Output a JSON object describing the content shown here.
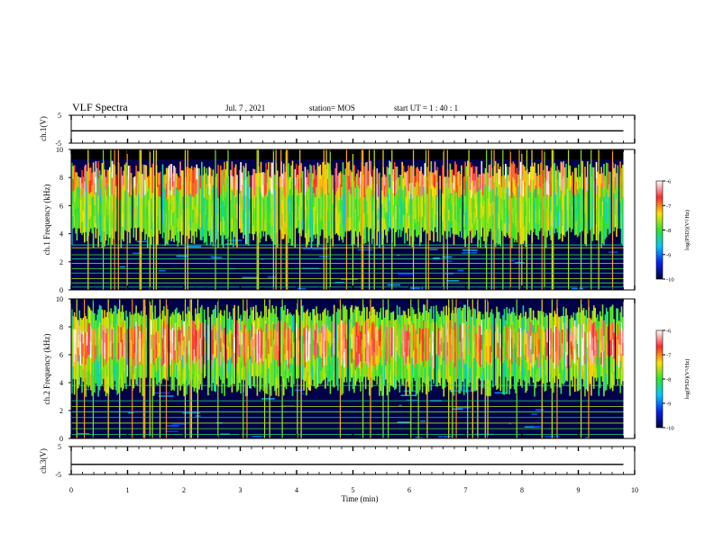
{
  "header": {
    "title": "VLF Spectra",
    "date": "Jul. 7 , 2021",
    "station": "station= MOS",
    "start": "start UT = 1 : 40 : 1"
  },
  "colorbar": {
    "label": "log(PSD)(V²/Hz)",
    "ticks": [
      -6,
      -7,
      -8,
      -9,
      -10
    ],
    "colors": [
      "#ffffff",
      "#ff2a2a",
      "#ffe100",
      "#2fe52f",
      "#00c8ff",
      "#0020ff",
      "#000033"
    ]
  },
  "chart_data": [
    {
      "type": "line",
      "panel": "ch.1 waveform",
      "ylabel": "ch.1(V)",
      "ylim": [
        -5,
        5
      ],
      "yticks": [
        5,
        -5
      ],
      "xlim": [
        0,
        10
      ],
      "series": [
        {
          "x": [
            0,
            9.8
          ],
          "y": [
            -0.6,
            -0.6
          ]
        }
      ]
    },
    {
      "type": "heatmap",
      "panel": "ch.1 spectrogram",
      "ylabel": "ch.1 Frequency (kHz)",
      "ylim": [
        0,
        10
      ],
      "yticks": [
        0,
        2,
        4,
        6,
        8,
        10
      ],
      "xlim": [
        0,
        10
      ],
      "color_range": [
        -10,
        -6
      ],
      "emission_band_khz": [
        3.5,
        9.2
      ],
      "peak_band_khz": [
        7,
        9
      ],
      "black_band_above_khz": 9.3,
      "data_end_min": 9.8,
      "line_frequencies_khz": [
        0.2,
        0.5,
        0.8,
        1.2,
        1.5,
        1.9,
        2.2,
        2.5,
        3.0,
        3.2
      ]
    },
    {
      "type": "heatmap",
      "panel": "ch.2 spectrogram",
      "ylabel": "ch.2 Frequency (kHz)",
      "ylim": [
        0,
        10
      ],
      "yticks": [
        0,
        2,
        4,
        6,
        8,
        10
      ],
      "xlim": [
        0,
        10
      ],
      "color_range": [
        -10,
        -6
      ],
      "emission_band_khz": [
        3.5,
        9.6
      ],
      "peak_band_khz": [
        5.5,
        8
      ],
      "data_end_min": 9.8,
      "line_frequencies_khz": [
        0.3,
        0.7,
        1.1,
        1.5,
        1.9,
        2.3,
        2.7,
        3.8
      ]
    },
    {
      "type": "line",
      "panel": "ch.3 waveform",
      "ylabel": "ch.3(V)",
      "ylim": [
        -5,
        5
      ],
      "yticks": [
        5,
        -5
      ],
      "xlim": [
        0,
        10
      ],
      "series": [
        {
          "x": [
            0,
            9.8
          ],
          "y": [
            -1.4,
            -1.4
          ]
        }
      ]
    }
  ],
  "xaxis": {
    "label": "Time (min)",
    "ticks": [
      0,
      1,
      2,
      3,
      4,
      5,
      6,
      7,
      8,
      9,
      10
    ]
  }
}
